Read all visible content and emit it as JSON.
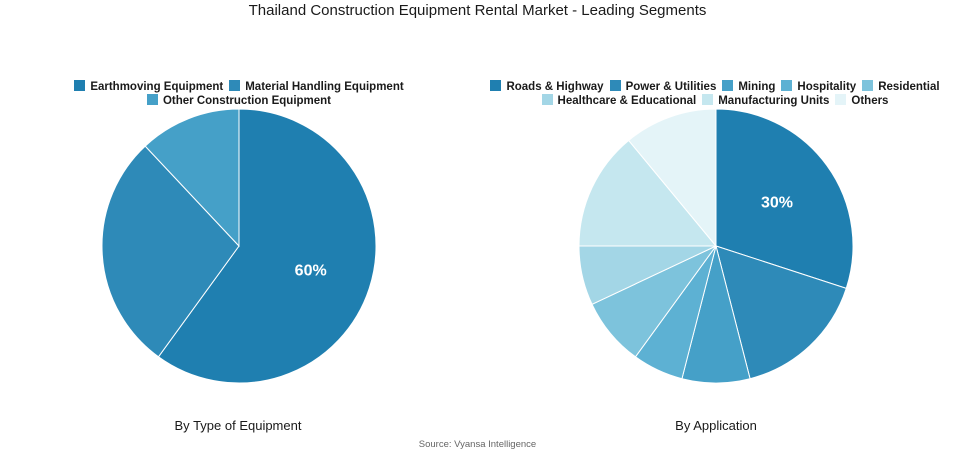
{
  "title": "Thailand Construction Equipment Rental Market - Leading Segments",
  "source": "Source: Vyansa Intelligence",
  "chart_data": [
    {
      "type": "pie",
      "caption": "By Type of Equipment",
      "labels": [
        "Earthmoving Equipment",
        "Material Handling Equipment",
        "Other Construction Equipment"
      ],
      "values": [
        60,
        28,
        12
      ],
      "colors": [
        "#1f7fb0",
        "#2e8ab8",
        "#45a0c8"
      ],
      "data_labels": [
        "60%",
        "",
        ""
      ],
      "legend_rows": [
        [
          0,
          1
        ],
        [
          2
        ]
      ]
    },
    {
      "type": "pie",
      "caption": "By Application",
      "labels": [
        "Roads & Highway",
        "Power & Utilities",
        "Mining",
        "Hospitality",
        "Residential",
        "Healthcare & Educational",
        "Manufacturing Units",
        "Others"
      ],
      "values": [
        30,
        16,
        8,
        6,
        8,
        7,
        14,
        11
      ],
      "colors": [
        "#1f7fb0",
        "#2e8ab8",
        "#45a0c8",
        "#5db1d3",
        "#7dc3dc",
        "#a3d6e6",
        "#c5e7ef",
        "#e4f4f8"
      ],
      "data_labels": [
        "30%",
        "",
        "",
        "",
        "",
        "",
        "",
        ""
      ],
      "legend_rows": [
        [
          0,
          1,
          2,
          3,
          4
        ],
        [
          5,
          6,
          7
        ]
      ]
    }
  ]
}
